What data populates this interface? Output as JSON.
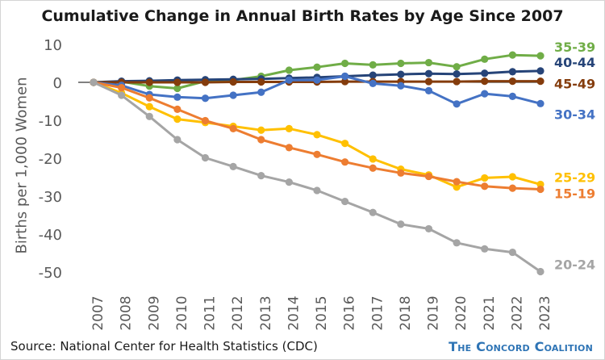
{
  "chart_data": {
    "type": "line",
    "title": "Cumulative Change in Annual Birth Rates by Age Since 2007",
    "ylabel": "Births per 1,000 Women",
    "xlabel": "",
    "ylim": [
      -50,
      10
    ],
    "yticks": [
      10,
      0,
      -10,
      -20,
      -30,
      -40,
      -50
    ],
    "categories": [
      "2007",
      "2008",
      "2009",
      "2010",
      "2011",
      "2012",
      "2013",
      "2014",
      "2015",
      "2016",
      "2017",
      "2018",
      "2019",
      "2020",
      "2021",
      "2022",
      "2023"
    ],
    "grid": false,
    "zero_line": true,
    "series": [
      {
        "name": "35-39",
        "color": "#70ad47",
        "values": [
          0,
          0.2,
          -1.0,
          -1.6,
          0.3,
          0.6,
          1.6,
          3.2,
          4.0,
          5.0,
          4.6,
          5.0,
          5.2,
          4.1,
          6.1,
          7.2,
          7.0
        ]
      },
      {
        "name": "40-44",
        "color": "#264478",
        "values": [
          0,
          0.3,
          0.4,
          0.6,
          0.7,
          0.8,
          0.9,
          1.1,
          1.3,
          1.6,
          1.9,
          2.1,
          2.3,
          2.2,
          2.4,
          2.8,
          3.0
        ]
      },
      {
        "name": "45-49",
        "color": "#843c0c",
        "values": [
          0,
          0.0,
          0.0,
          0.0,
          0.0,
          0.1,
          0.1,
          0.1,
          0.1,
          0.2,
          0.2,
          0.2,
          0.2,
          0.2,
          0.3,
          0.3,
          0.3
        ]
      },
      {
        "name": "30-34",
        "color": "#4472c4",
        "values": [
          0,
          -0.8,
          -3.2,
          -3.9,
          -4.2,
          -3.4,
          -2.6,
          0.6,
          0.6,
          1.6,
          -0.3,
          -0.9,
          -2.2,
          -5.7,
          -3.0,
          -3.7,
          -5.6
        ]
      },
      {
        "name": "25-29",
        "color": "#ffc000",
        "values": [
          0,
          -2.8,
          -6.4,
          -9.7,
          -10.6,
          -11.6,
          -12.6,
          -12.2,
          -13.8,
          -16.1,
          -20.2,
          -22.9,
          -24.4,
          -27.6,
          -25.2,
          -24.9,
          -26.9
        ]
      },
      {
        "name": "15-19",
        "color": "#ed7d31",
        "values": [
          0,
          -1.4,
          -4.1,
          -7.1,
          -10.1,
          -12.2,
          -15.1,
          -17.2,
          -19.0,
          -21.0,
          -22.6,
          -23.9,
          -24.8,
          -26.2,
          -27.4,
          -27.9,
          -28.2
        ]
      },
      {
        "name": "20-24",
        "color": "#a5a5a5",
        "values": [
          0,
          -3.4,
          -9.0,
          -15.1,
          -19.9,
          -22.2,
          -24.6,
          -26.3,
          -28.5,
          -31.4,
          -34.3,
          -37.4,
          -38.6,
          -42.3,
          -43.9,
          -44.8,
          -49.9
        ]
      }
    ]
  },
  "source": "Source: National Center for Health Statistics (CDC)",
  "brand": "The Concord Coalition"
}
